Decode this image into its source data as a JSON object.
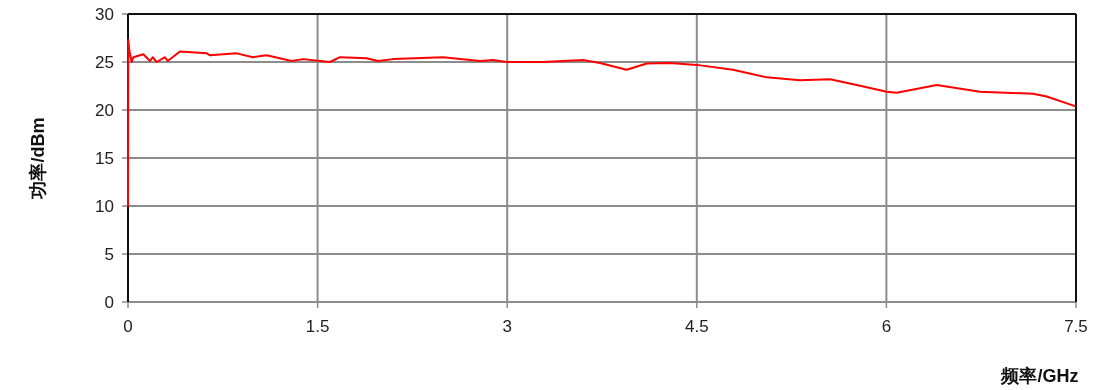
{
  "chart_data": {
    "type": "line",
    "xlabel": "频率/GHz",
    "ylabel": "功率/dBm",
    "xlim": [
      0,
      7.5
    ],
    "xticks": [
      0,
      1.5,
      3,
      4.5,
      6,
      7.5
    ],
    "ylim": [
      0,
      30
    ],
    "yticks": [
      0,
      5,
      10,
      15,
      20,
      25,
      30
    ],
    "grid": true,
    "series": [
      {
        "color": "#ff0000",
        "x": [
          0,
          0.002,
          0.01,
          0.029,
          0.042,
          0.121,
          0.174,
          0.195,
          0.227,
          0.293,
          0.314,
          0.411,
          0.623,
          0.649,
          0.86,
          0.989,
          1.097,
          1.295,
          1.384,
          1.598,
          1.677,
          1.888,
          1.978,
          2.097,
          2.492,
          2.785,
          2.888,
          2.996,
          3.283,
          3.6,
          3.734,
          3.945,
          4.104,
          4.288,
          4.499,
          4.786,
          5.053,
          5.316,
          5.554,
          5.765,
          6.002,
          6.081,
          6.398,
          6.741,
          7.16,
          7.268,
          7.492
        ],
        "values": [
          10,
          27.3,
          26.2,
          25.0,
          25.5,
          25.8,
          25.1,
          25.5,
          25.0,
          25.5,
          25.1,
          26.1,
          25.9,
          25.7,
          25.9,
          25.5,
          25.7,
          25.1,
          25.3,
          25.0,
          25.5,
          25.4,
          25.1,
          25.3,
          25.5,
          25.1,
          25.2,
          25.0,
          25.0,
          25.2,
          24.9,
          24.2,
          24.85,
          24.9,
          24.7,
          24.2,
          23.4,
          23.1,
          23.2,
          22.6,
          21.9,
          21.8,
          22.6,
          21.9,
          21.7,
          21.4,
          20.4
        ]
      }
    ]
  }
}
